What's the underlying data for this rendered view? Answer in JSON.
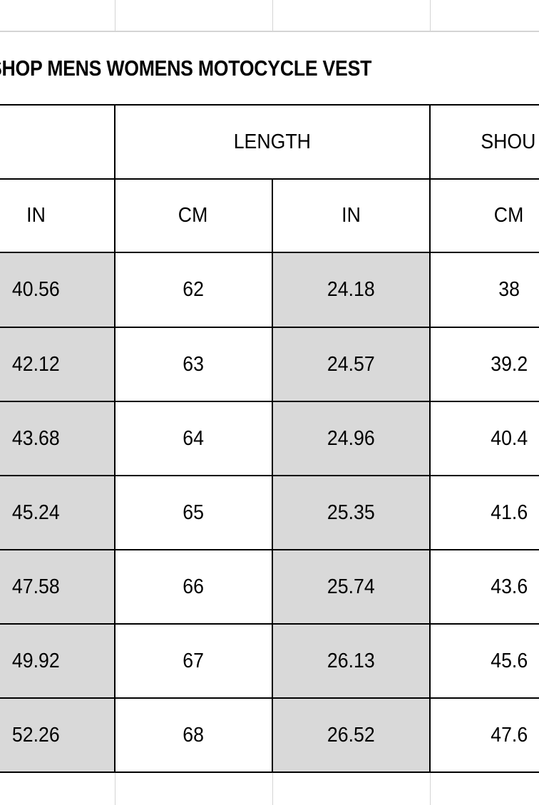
{
  "title": "SHOP MENS WOMENS MOTOCYCLE VEST",
  "header": {
    "group_length": "LENGTH",
    "group_shoulder": "SHOU",
    "units": [
      "IN",
      "CM",
      "IN",
      "CM"
    ]
  },
  "rows": [
    [
      "40.56",
      "62",
      "24.18",
      "38"
    ],
    [
      "42.12",
      "63",
      "24.57",
      "39.2"
    ],
    [
      "43.68",
      "64",
      "24.96",
      "40.4"
    ],
    [
      "45.24",
      "65",
      "25.35",
      "41.6"
    ],
    [
      "47.58",
      "66",
      "25.74",
      "43.6"
    ],
    [
      "49.92",
      "67",
      "26.13",
      "45.6"
    ],
    [
      "52.26",
      "68",
      "26.52",
      "47.6"
    ]
  ],
  "colors": {
    "shaded_cell": "#d9d9d9",
    "gridline": "#d4d4d4",
    "border": "#000000"
  }
}
